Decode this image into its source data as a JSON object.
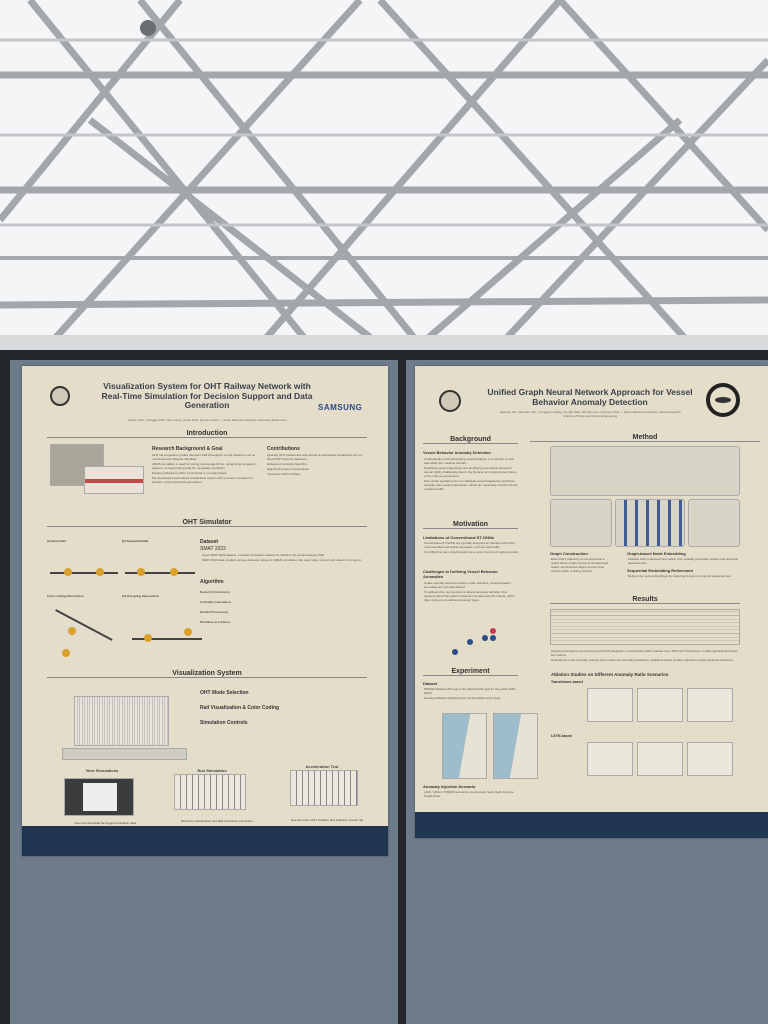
{
  "scene": {
    "ceiling_color": "#f4f5f6",
    "beam_color": "#9c9fa4",
    "board_color": "#23262b",
    "fabric_color": "#6e7b8a"
  },
  "poster_left": {
    "title": "Visualization System for OHT Railway Network with Real-Time Simulation for Decision Support and Data Generation",
    "authors": "Jinwoo Choi, Youngjae Park, Seon Jang, Yeeun Choi, Hyunsoo Park — Seoul National University, Samsung Electronics",
    "sponsor": "SAMSUNG",
    "sections": {
      "introduction": "Introduction",
      "research_background": "Research Background & Goal",
      "research_bullets": [
        "OHT rail congestion greatly hampers FAB throughput, so the network must be monitored and hotspots identified.",
        "AMHS simulation is used for testing routing algorithms, recognizing congestion patterns, and generating data for congestion prediction.",
        "Existing software is either commercial or not web-based.",
        "We developed a web-based visualization system with a custom simulator for decision support and data generation."
      ],
      "contributions": "Contributions",
      "contribution_bullets": [
        "Quantify OHT bottlenecks and provide a web-based visualization for on-site FOUP transport decisions.",
        "Enhanced Centrality Algorithm",
        "High-Performance Computation",
        "Interactive Web Interface"
      ],
      "oht_simulator": "OHT Simulator",
      "fig_labels": [
        "(a) Same Rail",
        "(b) Sequential Rail",
        "(c) In-coming Intersection",
        "(d) Out-going Intersection"
      ],
      "dataset": "Dataset",
      "smat": "SMAT 2022",
      "dataset_bullets": [
        "Used SMAT 2022 dataset, a testbed simulation dataset for AMHS in the semiconductor FAB.",
        "SMAT 2022 data contains various data and values for AMHS simulation. We used node, rail and port data in it for layout."
      ],
      "algorithm": "Algorithm",
      "algorithm_items": [
        "Node-Port Extension",
        "Centrality Calculation",
        "Parallel Processing",
        "Workflow at a Glance"
      ],
      "visualization_system": "Visualization System",
      "vis_items": [
        "OHT Mode Selection",
        "Rail Visualization & Color Coding",
        "Simulation Controls"
      ],
      "panels": [
        "View Simulations",
        "Run Simulation",
        "Acceleration Test"
      ],
      "panel_captions": [
        "View and download the logged simulation data",
        "Real-time visualization and Rail-cut/restore interaction",
        "See the future OHT situation and statistics of each rail"
      ]
    }
  },
  "poster_right": {
    "title": "Unified Graph Neural Network Approach for Vessel Behavior Anomaly Detection",
    "authors": "Jaehong Kim, Minchan Kim, Youngjune Hwang, Sungho Bae, Wonhee Lee, Hyunsoo Park — Seoul National University, Korea Research Institute of Ships and Ocean Engineering",
    "sections": {
      "background": "Background",
      "vbad": "Vessel Behavior Anomaly Detection",
      "background_bullets": [
        "Understanding and anticipating vessel behavior is a complex & vital task within the maritime domain.",
        "Predicting vessel trajectories and identifying anomalous behaviors remain highly challenging due to the dynamic and unstructured nature of the marine environment.",
        "Prior works typically focus on individual vessel trajectories and fail to consider inter-vessel interactions, which are especially critical in dense maritime traffic."
      ],
      "motivation": "Motivation",
      "limitations": "Limitations of Conventional ST-GNNs",
      "limitations_bullets": [
        "Conventional ST-GNNs are typically designed for domains with fixed node identities and stable topologies, such as road traffic.",
        "It is difficult to use a fixed location as a node in terms of marine domain."
      ],
      "challenges": "Challenges in Defining Vessel Behavior Anomalies",
      "challenges_bullets": [
        "Unlike anomaly detection tasks in other domains, vessel behavior anomalies are not well-defined.",
        "To address this, we construct a tailored anomaly definition that captures abnormal patterns based on domain-specific criteria, rather than relying on predefined anomaly types."
      ],
      "experiment": "Experiment",
      "dataset": "Dataset",
      "dataset_bullets": [
        "DMTAD Dataset (AIS logs in the West Pacific grid for the years 2018–2020)",
        "Heavily trafficked shipping lanes off Australia's west coast"
      ],
      "anomaly_injection": "Anomaly Injection Scenario",
      "anomaly_bullets": [
        "LOW / HIGH / STRESS scenarios via Anomaly Node Ratio & Route Graph Ratio"
      ],
      "method": "Method",
      "graph_construction": "Graph Construction",
      "graph_construction_text": "Each ship's trajectory is converted into a graph where nodes represent timestamped states, and directed edges connect time stamps within a sliding window.",
      "node_embedding": "Graph-based Node Embedding",
      "node_embedding_text": "Includes both contextual information from spatially proximate vessels and temporal dependencies.",
      "sequential_refinement": "Sequential Embedding Refinement",
      "sequential_refinement_text": "Refines the node embeddings by capturing long-term temporal dependencies.",
      "results": "Results",
      "results_bullets": [
        "Overall performance improvement with GNN integration: incorporating GNN modules into LSTM and Transformer models significantly boosts key metrics.",
        "Robustness in low-anomaly settings: Even under low anomaly prevalence, spatial-temporal models outperform purely temporal baselines."
      ],
      "ablation": "Ablation Studies on Different Anomaly Ratio Scenarios",
      "transformer_based": "Transformer-based",
      "lstm_based": "LSTM-based"
    }
  }
}
